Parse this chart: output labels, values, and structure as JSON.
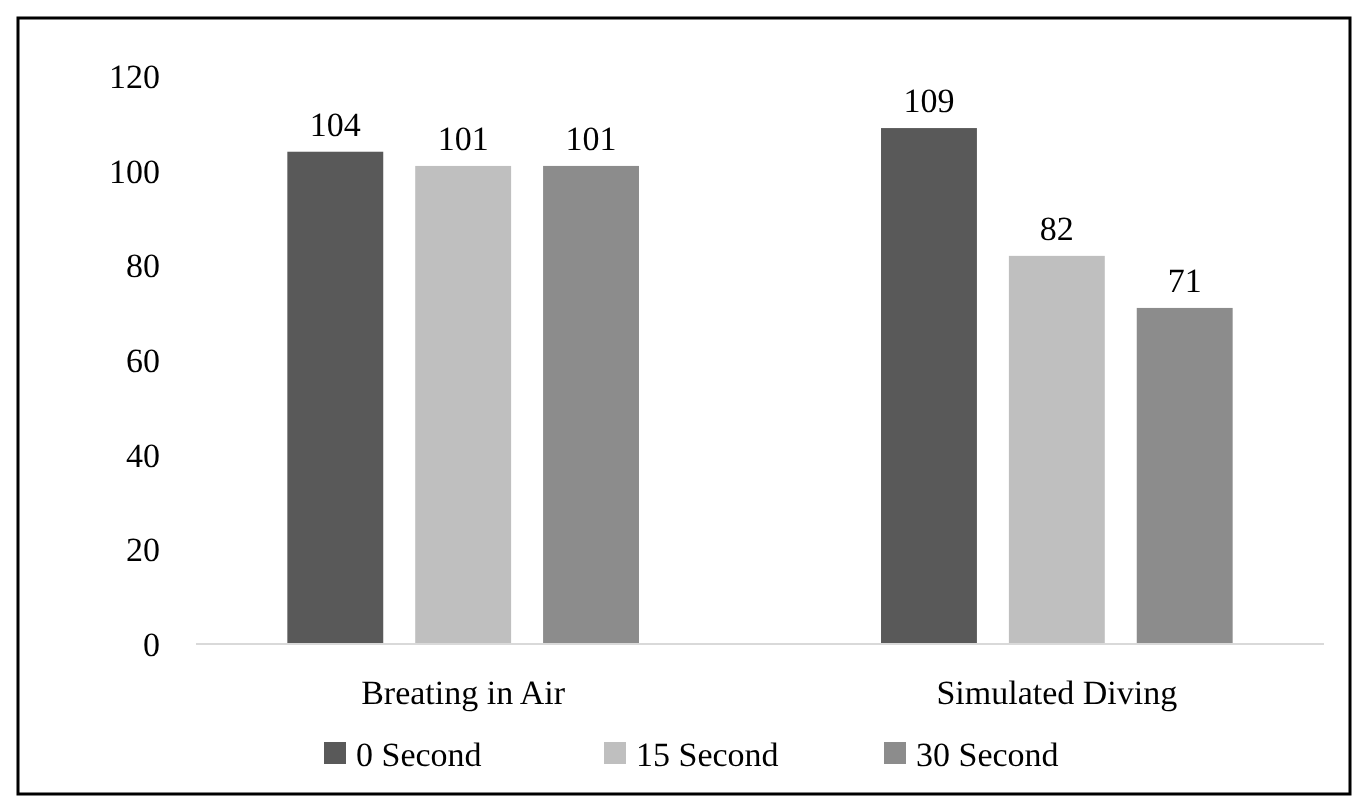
{
  "chart_data": {
    "type": "bar",
    "categories": [
      "Breating in Air",
      "Simulated Diving"
    ],
    "series": [
      {
        "name": "0 Second",
        "color": "#595959",
        "values": [
          104,
          109
        ]
      },
      {
        "name": "15 Second",
        "color": "#bfbfbf",
        "values": [
          101,
          82
        ]
      },
      {
        "name": "30 Second",
        "color": "#8c8c8c",
        "values": [
          101,
          71
        ]
      }
    ],
    "ylim": [
      0,
      120
    ],
    "yticks": [
      0,
      20,
      40,
      60,
      80,
      100,
      120
    ],
    "grid": false,
    "data_labels": true,
    "legend": "bottom"
  }
}
